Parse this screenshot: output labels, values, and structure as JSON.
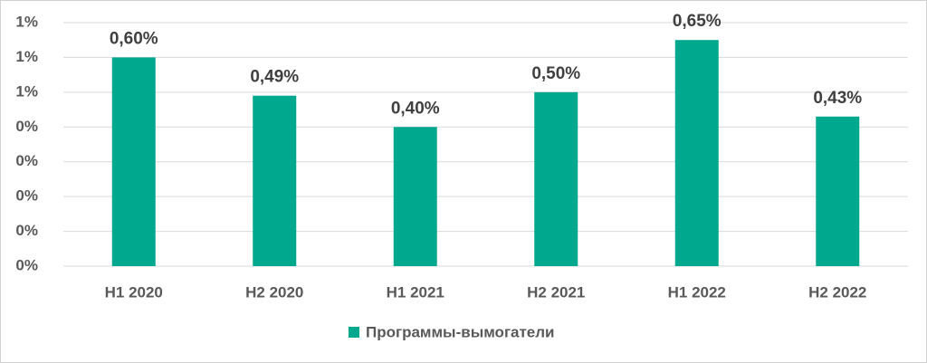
{
  "chart_data": {
    "type": "bar",
    "categories": [
      "H1 2020",
      "H2 2020",
      "H1 2021",
      "H2 2021",
      "H1 2022",
      "H2 2022"
    ],
    "series": [
      {
        "name": "Программы-вымогатели",
        "color": "#00a88e",
        "values": [
          0.6,
          0.49,
          0.4,
          0.5,
          0.65,
          0.43
        ],
        "value_labels": [
          "0,60%",
          "0,49%",
          "0,40%",
          "0,50%",
          "0,65%",
          "0,43%"
        ]
      }
    ],
    "ylim": [
      0,
      0.7
    ],
    "yticks": [
      {
        "value": 0,
        "label": "0%"
      },
      {
        "value": 0.1,
        "label": "0%"
      },
      {
        "value": 0.2,
        "label": "0%"
      },
      {
        "value": 0.3,
        "label": "0%"
      },
      {
        "value": 0.4,
        "label": "0%"
      },
      {
        "value": 0.5,
        "label": "1%"
      },
      {
        "value": 0.6,
        "label": "1%"
      },
      {
        "value": 0.7,
        "label": "1%"
      }
    ],
    "grid": true,
    "legend": "bottom"
  }
}
